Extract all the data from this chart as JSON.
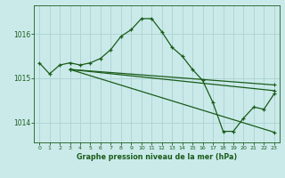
{
  "background_color": "#caeaea",
  "grid_color": "#b0d4d4",
  "line_color": "#1a5c1a",
  "marker": "+",
  "title": "Graphe pression niveau de la mer (hPa)",
  "ylim": [
    1013.55,
    1016.65
  ],
  "ylabel_ticks": [
    1014,
    1015,
    1016
  ],
  "series_main": {
    "x": [
      0,
      1,
      2,
      3,
      4,
      5,
      6,
      7,
      8,
      9,
      10,
      11,
      12,
      13,
      14,
      15,
      16,
      17,
      18,
      19,
      20,
      21,
      22,
      23
    ],
    "y": [
      1015.35,
      1015.1,
      1015.3,
      1015.35,
      1015.3,
      1015.35,
      1015.45,
      1015.65,
      1015.95,
      1016.1,
      1016.35,
      1016.35,
      1016.05,
      1015.7,
      1015.5,
      1015.2,
      1014.95,
      1014.45,
      1013.8,
      1013.8,
      1014.1,
      1014.35,
      1014.3,
      1014.65
    ]
  },
  "series_straight": [
    {
      "x": [
        3,
        23
      ],
      "y": [
        1015.2,
        1014.85
      ]
    },
    {
      "x": [
        3,
        23
      ],
      "y": [
        1015.2,
        1014.72
      ]
    },
    {
      "x": [
        3,
        23
      ],
      "y": [
        1015.2,
        1013.78
      ]
    }
  ],
  "figsize": [
    3.2,
    2.0
  ],
  "dpi": 100
}
